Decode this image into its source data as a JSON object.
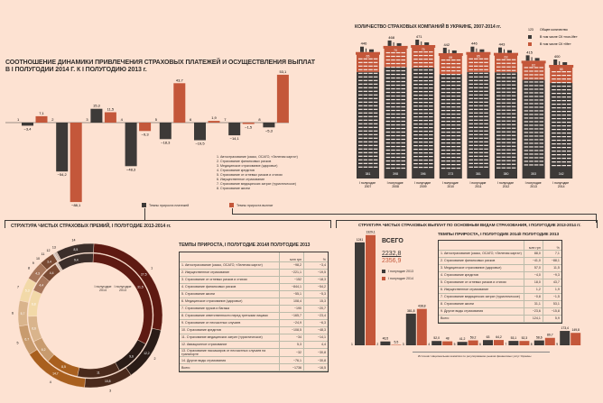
{
  "colors": {
    "dark": "#3d3a38",
    "red": "#c4573a",
    "background": "#fde2d2"
  },
  "chart_data": [
    {
      "type": "bar",
      "title": "СООТНОШЕНИЕ ДИНАМИКИ ПРИВЛЕЧЕНИЯ СТРАХОВЫХ ПЛАТЕЖЕЙ И ОСУЩЕСТВЛЕНИЯ ВЫПЛАТ",
      "subtitle": "В I ПОЛУГОДИИ 2014 Г. К I ПОЛУГОДИЮ 2013 г.",
      "categories": [
        "1",
        "2",
        "3",
        "4",
        "5",
        "6",
        "7",
        "8"
      ],
      "series": [
        {
          "name": "Темпы прироста платежей",
          "values": [
            -3.4,
            -54.2,
            15.3,
            -48.3,
            -18.3,
            -19.5,
            -14.1,
            -5.3
          ],
          "labels": [
            "−3,4",
            "−54,2",
            "15,3",
            "−48,3",
            "−18,3",
            "−19,5",
            "−14,1",
            "−5,3"
          ]
        },
        {
          "name": "Темпы прироста выплат",
          "values": [
            7.1,
            -88.1,
            11.5,
            -9.3,
            43.7,
            1.9,
            -1.5,
            53.1
          ],
          "labels": [
            "7,1",
            "−88,1",
            "11,5",
            "−9,3",
            "43,7",
            "1,9",
            "−1,5",
            "53,1"
          ]
        }
      ],
      "category_legend": [
        "1. Автострахование (каско, ОСАГО, «Зеленая карта»)",
        "2. Страхование финансовых рисков",
        "3. Медицинское страхование (здоровье)",
        "4. Страхование кредитов",
        "5. Страхование от огневых рисков и стихии",
        "6. Имущественное страхование",
        "7. Страхование медицинских затрат (туристическое)",
        "8. Страхование жизни"
      ]
    },
    {
      "type": "bar",
      "stacked": true,
      "title": "КОЛИЧЕСТВО СТРАХОВЫХ КОМПАНИЙ В УКРАИНЕ, 2007-2014 гг.",
      "categories": [
        "I полугодие 2007",
        "I полугодие 2008",
        "I полугодие 2009",
        "I полугодие 2010",
        "I полугодие 2011",
        "I полугодие 2012",
        "I полугодие 2013",
        "I полугодие 2014"
      ],
      "totals": [
        446,
        468,
        471,
        442,
        446,
        443,
        415,
        400
      ],
      "series": [
        {
          "name": "В том числе СК «non-life»",
          "values": [
            381,
            398,
            396,
            373,
            381,
            380,
            353,
            342
          ]
        },
        {
          "name": "В том числе СК «life»",
          "values": [
            65,
            70,
            75,
            69,
            65,
            63,
            62,
            58
          ]
        }
      ],
      "legend_total": "Общее количество",
      "legend_total_sample": "123"
    },
    {
      "type": "pie",
      "donut": true,
      "title": "СТРУКТУРА ЧИСТЫХ СТРАХОВЫХ ПРЕМИЙ, I ПОЛУГОДИЕ 2013-2014 гг.",
      "categories": [
        "1",
        "2",
        "3",
        "4",
        "5",
        "6",
        "7",
        "8",
        "9",
        "10",
        "11",
        "12",
        "13",
        "14"
      ],
      "series": [
        {
          "name": "I полугодие 2014",
          "values": [
            31.5,
            9.6,
            11.0,
            8.5,
            6.2,
            6.6,
            6.8,
            4.4,
            4.4,
            0.2,
            0.3,
            0.2,
            0.08,
            9.4
          ]
        },
        {
          "name": "I полугодие 2013",
          "values": [
            27.5,
            12.2,
            10.8,
            14.7,
            6.7,
            5.7,
            5.3,
            4.3,
            3.4,
            0.4,
            0.3,
            0.2,
            0.07,
            8.5
          ]
        }
      ],
      "slice_colors": [
        "#5e1a12",
        "#2a1c17",
        "#4a2a1c",
        "#a9601f",
        "#c89b6e",
        "#d9b48c",
        "#f2d9a8",
        "#a8775c",
        "#7a4a33",
        "#d8c8c0",
        "#bfb0a8",
        "#9e8e86",
        "#8a7a70",
        "#3b2e2a"
      ]
    },
    {
      "type": "bar",
      "title": "СТРУКТУРА ЧИСТЫХ СТРАХОВЫХ ВЫПЛАТ ПО ОСНОВНЫМ ВИДАМ СТРАХОВАНИЯ, I ПОЛУГОДИЕ 2013-2014 гг.",
      "categories": [
        "1",
        "2",
        "3",
        "4",
        "5",
        "6",
        "7",
        "8",
        "9"
      ],
      "series": [
        {
          "name": "I полугодие 2013",
          "values": [
            1241,
            46.5,
            381.8,
            52.0,
            41.2,
            63.0,
            53.1,
            58.6,
            173.4
          ],
          "labels": [
            "1241",
            "46,5",
            "381,8",
            "52,0",
            "41,2",
            "63",
            "53,1",
            "58,6",
            "173,4"
          ]
        },
        {
          "name": "I полугодие 2014",
          "values": [
            1329.1,
            5.5,
            438.8,
            48.0,
            59.2,
            64.2,
            52.3,
            89.7,
            149.8
          ],
          "labels": [
            "1329,1",
            "5,5",
            "438,8",
            "48",
            "59,2",
            "64,2",
            "52,3",
            "89,7",
            "149,8"
          ]
        }
      ],
      "total_label": "ВСЕГО",
      "totals": [
        "2232,8",
        "2356,9"
      ]
    }
  ],
  "premiums_table": {
    "title": "ТЕМПЫ ПРИРОСТА, I ПОЛУГОДИЕ 2014/I ПОЛУГОДИЕ 2013",
    "headers": [
      "",
      "млн грн",
      "%"
    ],
    "rows": [
      [
        "1. Автострахование (каско, ОСАГО, «Зеленая карта»)",
        "−98,2",
        "−3,4"
      ],
      [
        "2. Имущественное страхование",
        "−221,1",
        "−19,5"
      ],
      [
        "3. Страхование от огневых рисков и стихии",
        "−152",
        "−18,3"
      ],
      [
        "4. Страхование финансовых рисков",
        "−844,1",
        "−54,2"
      ],
      [
        "5. Страхование жизни",
        "−55,1",
        "−5,3"
      ],
      [
        "6. Медицинское страхование (здоровье)",
        "108,4",
        "15,3"
      ],
      [
        "7. Страхование грузов и багажа",
        "−190",
        "−20,7"
      ],
      [
        "8. Страхование ответственности перед третьими лицами",
        "−165,7",
        "−23,4"
      ],
      [
        "9. Страхование от несчастных случаев",
        "−24,9",
        "−6,3"
      ],
      [
        "10. Страхование кредитов",
        "−108,5",
        "−48,3"
      ],
      [
        "11. Страхование медицинских затрат (туристическое)",
        "−34",
        "−14,1"
      ],
      [
        "12. Авиационное страхование",
        "5,3",
        "4,4"
      ],
      [
        "13. Страхование пассажиров от несчастных случаев на транспорте",
        "−32",
        "−30,8"
      ],
      [
        "14. Другие виды страхования",
        "−76,1",
        "−30,8"
      ],
      [
        "Всего",
        "−1736",
        "−16,5"
      ]
    ]
  },
  "payouts_table": {
    "title": "ТЕМПЫ ПРИРОСТА, I ПОЛУГОДИЕ 2014/I ПОЛУГОДИЕ 2013",
    "headers": [
      "",
      "млн грн",
      "%"
    ],
    "rows": [
      [
        "1. Автострахование (каско, ОСАГО, «Зеленая карта»)",
        "88,0",
        "7,1"
      ],
      [
        "2. Страхование финансовых рисков",
        "−41,0",
        "−88,1"
      ],
      [
        "3. Медицинское страхование (здоровье)",
        "57,0",
        "11,5"
      ],
      [
        "4. Страхование кредитов",
        "−4,0",
        "−9,3"
      ],
      [
        "5. Страхование от огневых рисков и стихии",
        "18,0",
        "43,7"
      ],
      [
        "6. Имущественное страхование",
        "1,2",
        "1,9"
      ],
      [
        "7. Страхование медицинских затрат (туристическое)",
        "−0,8",
        "−1,5"
      ],
      [
        "8. Страхование жизни",
        "31,1",
        "53,1"
      ],
      [
        "9. Другие виды страхования",
        "−23,6",
        "−15,8"
      ],
      [
        "Всего",
        "124,1",
        "5,9"
      ]
    ]
  },
  "source": "Источник: Национальная комиссия по регулированию рынков финансовых услуг Украины"
}
